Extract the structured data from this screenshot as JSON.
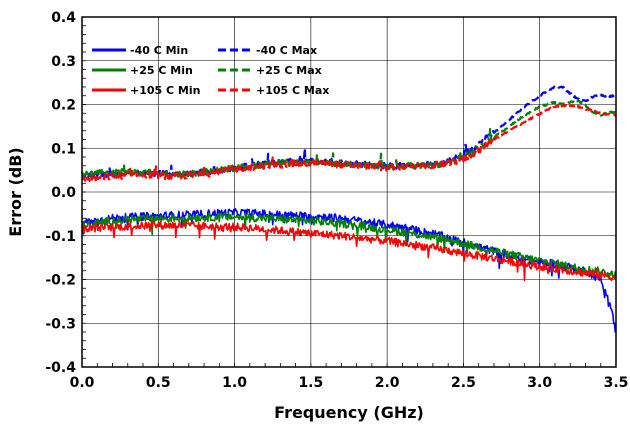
{
  "chart_data": {
    "type": "line",
    "xlabel": "Frequency (GHz)",
    "ylabel": "Error (dB)",
    "xlim": [
      0.0,
      3.5
    ],
    "ylim": [
      -0.4,
      0.4
    ],
    "x_ticks": [
      0.0,
      0.5,
      1.0,
      1.5,
      2.0,
      2.5,
      3.0,
      3.5
    ],
    "x_tick_labels": [
      "0.0",
      "0.5",
      "1.0",
      "1.5",
      "2.0",
      "2.5",
      "3.0",
      "3.5"
    ],
    "y_ticks": [
      -0.4,
      -0.3,
      -0.2,
      -0.1,
      0.0,
      0.1,
      0.2,
      0.3,
      0.4
    ],
    "y_tick_labels": [
      "-0.4",
      "-0.3",
      "-0.2",
      "-0.1",
      "0.0",
      "0.1",
      "0.2",
      "0.3",
      "0.4"
    ],
    "grid": true,
    "legend_position": "top-left",
    "series": [
      {
        "name": "-40 C Min",
        "color": "#0000ff",
        "style": "solid",
        "x": [
          0.0,
          0.1,
          0.2,
          0.3,
          0.4,
          0.5,
          0.6,
          0.7,
          0.8,
          0.9,
          1.0,
          1.1,
          1.2,
          1.3,
          1.4,
          1.5,
          1.6,
          1.7,
          1.8,
          1.9,
          2.0,
          2.1,
          2.2,
          2.3,
          2.4,
          2.5,
          2.6,
          2.7,
          2.8,
          2.9,
          3.0,
          3.1,
          3.2,
          3.3,
          3.4,
          3.45,
          3.5
        ],
        "y": [
          -0.07,
          -0.065,
          -0.06,
          -0.058,
          -0.056,
          -0.055,
          -0.053,
          -0.052,
          -0.05,
          -0.048,
          -0.047,
          -0.048,
          -0.05,
          -0.052,
          -0.054,
          -0.055,
          -0.057,
          -0.06,
          -0.065,
          -0.07,
          -0.075,
          -0.08,
          -0.088,
          -0.095,
          -0.105,
          -0.115,
          -0.125,
          -0.135,
          -0.145,
          -0.155,
          -0.16,
          -0.165,
          -0.172,
          -0.18,
          -0.2,
          -0.24,
          -0.32
        ]
      },
      {
        "name": "+25 C Min",
        "color": "#008000",
        "style": "solid",
        "x": [
          0.0,
          0.1,
          0.2,
          0.3,
          0.4,
          0.5,
          0.6,
          0.7,
          0.8,
          0.9,
          1.0,
          1.1,
          1.2,
          1.3,
          1.4,
          1.5,
          1.6,
          1.7,
          1.8,
          1.9,
          2.0,
          2.1,
          2.2,
          2.3,
          2.4,
          2.5,
          2.6,
          2.7,
          2.8,
          2.9,
          3.0,
          3.1,
          3.2,
          3.3,
          3.4,
          3.5
        ],
        "y": [
          -0.075,
          -0.07,
          -0.066,
          -0.063,
          -0.062,
          -0.061,
          -0.06,
          -0.059,
          -0.058,
          -0.057,
          -0.057,
          -0.058,
          -0.06,
          -0.062,
          -0.064,
          -0.066,
          -0.069,
          -0.072,
          -0.076,
          -0.081,
          -0.086,
          -0.091,
          -0.097,
          -0.103,
          -0.11,
          -0.118,
          -0.126,
          -0.134,
          -0.142,
          -0.15,
          -0.157,
          -0.163,
          -0.17,
          -0.176,
          -0.182,
          -0.19
        ]
      },
      {
        "name": "+105 C Min",
        "color": "#ff0000",
        "style": "solid",
        "x": [
          0.0,
          0.1,
          0.2,
          0.3,
          0.4,
          0.5,
          0.6,
          0.7,
          0.8,
          0.9,
          1.0,
          1.1,
          1.2,
          1.3,
          1.4,
          1.5,
          1.6,
          1.7,
          1.8,
          1.9,
          2.0,
          2.1,
          2.2,
          2.3,
          2.4,
          2.5,
          2.6,
          2.7,
          2.8,
          2.9,
          3.0,
          3.1,
          3.2,
          3.3,
          3.4,
          3.5
        ],
        "y": [
          -0.085,
          -0.082,
          -0.08,
          -0.078,
          -0.077,
          -0.076,
          -0.076,
          -0.077,
          -0.078,
          -0.079,
          -0.08,
          -0.082,
          -0.085,
          -0.088,
          -0.091,
          -0.094,
          -0.097,
          -0.1,
          -0.104,
          -0.108,
          -0.112,
          -0.117,
          -0.122,
          -0.128,
          -0.134,
          -0.14,
          -0.146,
          -0.152,
          -0.158,
          -0.164,
          -0.17,
          -0.175,
          -0.18,
          -0.185,
          -0.19,
          -0.195
        ]
      },
      {
        "name": "-40 C Max",
        "color": "#0000ff",
        "style": "dashed",
        "x": [
          0.0,
          0.2,
          0.4,
          0.6,
          0.8,
          1.0,
          1.2,
          1.4,
          1.6,
          1.8,
          2.0,
          2.2,
          2.4,
          2.5,
          2.6,
          2.7,
          2.8,
          2.9,
          3.0,
          3.05,
          3.1,
          3.15,
          3.2,
          3.25,
          3.3,
          3.35,
          3.4,
          3.45,
          3.5
        ],
        "y": [
          0.035,
          0.04,
          0.045,
          0.04,
          0.045,
          0.055,
          0.065,
          0.07,
          0.07,
          0.065,
          0.06,
          0.06,
          0.07,
          0.085,
          0.11,
          0.135,
          0.165,
          0.195,
          0.22,
          0.232,
          0.24,
          0.24,
          0.225,
          0.212,
          0.208,
          0.218,
          0.222,
          0.218,
          0.222
        ]
      },
      {
        "name": "+25 C Max",
        "color": "#008000",
        "style": "dashed",
        "x": [
          0.0,
          0.2,
          0.4,
          0.6,
          0.8,
          1.0,
          1.2,
          1.4,
          1.6,
          1.8,
          2.0,
          2.2,
          2.4,
          2.5,
          2.6,
          2.7,
          2.8,
          2.9,
          3.0,
          3.05,
          3.1,
          3.15,
          3.2,
          3.25,
          3.3,
          3.35,
          3.4,
          3.45,
          3.5
        ],
        "y": [
          0.04,
          0.045,
          0.045,
          0.04,
          0.045,
          0.055,
          0.063,
          0.068,
          0.067,
          0.063,
          0.058,
          0.06,
          0.065,
          0.08,
          0.1,
          0.125,
          0.15,
          0.175,
          0.195,
          0.2,
          0.205,
          0.2,
          0.205,
          0.208,
          0.198,
          0.182,
          0.175,
          0.185,
          0.18
        ]
      },
      {
        "name": "+105 C Max",
        "color": "#ff0000",
        "style": "dashed",
        "x": [
          0.0,
          0.2,
          0.4,
          0.6,
          0.8,
          1.0,
          1.2,
          1.4,
          1.6,
          1.8,
          2.0,
          2.2,
          2.4,
          2.5,
          2.6,
          2.7,
          2.8,
          2.9,
          3.0,
          3.05,
          3.1,
          3.15,
          3.2,
          3.25,
          3.3,
          3.35,
          3.4,
          3.45,
          3.5
        ],
        "y": [
          0.03,
          0.035,
          0.04,
          0.035,
          0.04,
          0.052,
          0.06,
          0.065,
          0.065,
          0.06,
          0.055,
          0.058,
          0.065,
          0.075,
          0.095,
          0.12,
          0.14,
          0.16,
          0.178,
          0.188,
          0.195,
          0.198,
          0.198,
          0.195,
          0.19,
          0.185,
          0.18,
          0.178,
          0.175
        ]
      }
    ]
  }
}
